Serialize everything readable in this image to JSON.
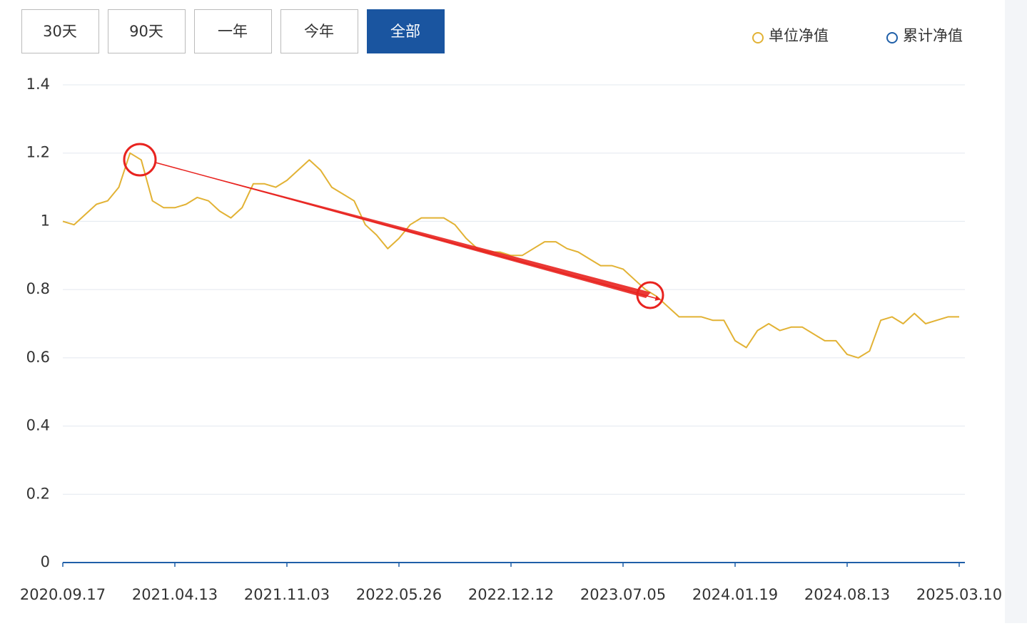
{
  "chart_data": {
    "type": "line",
    "buttons": [
      "30天",
      "90天",
      "一年",
      "今年",
      "全部"
    ],
    "active_button": 4,
    "categories": [
      "2020.09.17",
      null,
      null,
      null,
      null,
      null,
      null,
      null,
      null,
      null,
      "2021.04.13",
      null,
      null,
      null,
      null,
      null,
      null,
      null,
      null,
      null,
      "2021.11.03",
      null,
      null,
      null,
      null,
      null,
      null,
      null,
      null,
      null,
      "2022.05.26",
      null,
      null,
      null,
      null,
      null,
      null,
      null,
      null,
      null,
      "2022.12.12",
      null,
      null,
      null,
      null,
      null,
      null,
      null,
      null,
      null,
      "2023.07.05",
      null,
      null,
      null,
      null,
      null,
      null,
      null,
      null,
      null,
      "2024.01.19",
      null,
      null,
      null,
      null,
      null,
      null,
      null,
      null,
      null,
      "2024.08.13",
      null,
      null,
      null,
      null,
      null,
      null,
      null,
      null,
      null,
      "2025.03.10"
    ],
    "series": [
      {
        "name": "单位净值",
        "color": "#e2b234",
        "values": [
          1.0,
          0.99,
          1.02,
          1.05,
          1.06,
          1.1,
          1.2,
          1.18,
          1.06,
          1.04,
          1.04,
          1.05,
          1.07,
          1.06,
          1.03,
          1.01,
          1.04,
          1.11,
          1.11,
          1.1,
          1.12,
          1.15,
          1.18,
          1.15,
          1.1,
          1.08,
          1.06,
          0.99,
          0.96,
          0.92,
          0.95,
          0.99,
          1.01,
          1.01,
          1.01,
          0.99,
          0.95,
          0.92,
          0.91,
          0.91,
          0.9,
          0.9,
          0.92,
          0.94,
          0.94,
          0.92,
          0.91,
          0.89,
          0.87,
          0.87,
          0.86,
          0.83,
          0.8,
          0.78,
          0.75,
          0.72,
          0.72,
          0.72,
          0.71,
          0.71,
          0.65,
          0.63,
          0.68,
          0.7,
          0.68,
          0.69,
          0.69,
          0.67,
          0.65,
          0.65,
          0.61,
          0.6,
          0.62,
          0.71,
          0.72,
          0.7,
          0.73,
          0.7,
          0.71,
          0.72,
          0.72
        ]
      },
      {
        "name": "累计净值",
        "color": "#1f5fa8",
        "hidden": true,
        "values": [
          null,
          null,
          null,
          null,
          null,
          null,
          null,
          null,
          null,
          null,
          null,
          null,
          null,
          null,
          null,
          null,
          null,
          null,
          null,
          null,
          null,
          null,
          null,
          null,
          null,
          null,
          null,
          null,
          null,
          null,
          null,
          null,
          null,
          null,
          null,
          null,
          null,
          null,
          null,
          null,
          null,
          null,
          null,
          null,
          null,
          null,
          null,
          null,
          null,
          null,
          null,
          null,
          null,
          null,
          null,
          null,
          null,
          null,
          null,
          null,
          null,
          null,
          null,
          null,
          null,
          null,
          null,
          null,
          null,
          null,
          null,
          null,
          null,
          null,
          null,
          null,
          null,
          null,
          null,
          null,
          null
        ]
      }
    ],
    "ylim": [
      0,
      1.4
    ],
    "yticks": [
      0,
      0.2,
      0.4,
      0.6,
      0.8,
      1,
      1.2,
      1.4
    ],
    "grid": true,
    "legend": "top-right"
  }
}
